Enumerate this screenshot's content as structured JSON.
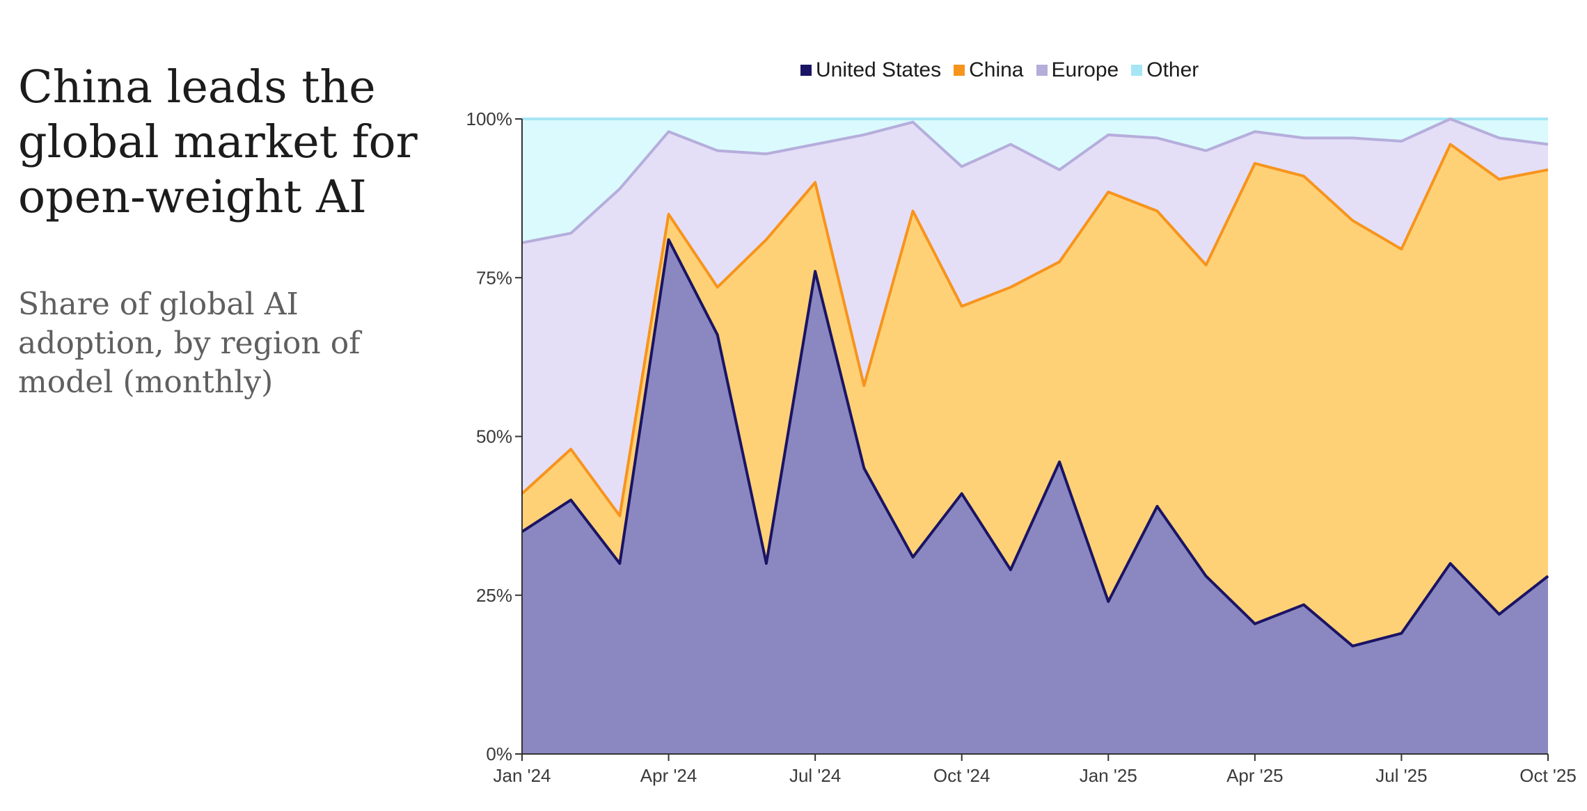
{
  "chart_data": {
    "type": "area",
    "stacked": true,
    "title": "China leads the global market for open-weight AI",
    "subtitle": "Share of global AI adoption, by region of model (monthly)",
    "x": [
      "Jan '24",
      "Feb '24",
      "Mar '24",
      "Apr '24",
      "May '24",
      "Jun '24",
      "Jul '24",
      "Aug '24",
      "Sep '24",
      "Oct '24",
      "Nov '24",
      "Dec '24",
      "Jan '25",
      "Feb '25",
      "Mar '25",
      "Apr '25",
      "May '25",
      "Jun '25",
      "Jul '25",
      "Aug '25",
      "Sep '25",
      "Oct '25"
    ],
    "x_tick_labels": [
      "Jan '24",
      "Apr '24",
      "Jul '24",
      "Oct '24",
      "Jan '25",
      "Apr '25",
      "Jul '25",
      "Oct '25"
    ],
    "y_tick_labels": [
      "0%",
      "25%",
      "50%",
      "75%",
      "100%"
    ],
    "ylim": [
      0,
      100
    ],
    "legend_position": "top",
    "series": [
      {
        "name": "United States",
        "color": "#1a1464",
        "fill": "#8b88c1",
        "values": [
          35,
          40,
          30,
          81,
          66,
          30,
          76,
          45,
          31,
          41,
          29,
          46,
          24,
          39,
          28,
          20.5,
          23.5,
          17,
          19,
          30,
          22,
          28
        ]
      },
      {
        "name": "China",
        "color": "#f7941d",
        "fill": "#ffd177",
        "values": [
          6,
          8,
          7.5,
          4,
          7.5,
          51,
          14,
          13,
          54.5,
          29.5,
          44.5,
          31.5,
          64.5,
          46.5,
          49,
          72.5,
          67.5,
          67,
          60.5,
          66,
          68.5,
          64
        ]
      },
      {
        "name": "Europe",
        "color": "#b5aedb",
        "fill": "#e4dff7",
        "values": [
          39.5,
          34,
          51.5,
          13,
          21.5,
          13.5,
          6,
          39.5,
          14,
          22,
          22.5,
          14.5,
          9,
          11.5,
          18,
          5,
          6,
          13,
          17,
          4,
          6.5,
          4
        ]
      },
      {
        "name": "Other",
        "color": "#a6e5f5",
        "fill": "#dbfafd",
        "values": [
          19.5,
          18,
          11,
          2,
          5,
          5.5,
          4,
          2.5,
          0.5,
          7.5,
          4,
          8,
          2.5,
          3,
          5,
          2,
          3,
          3,
          3.5,
          0,
          3,
          4
        ]
      }
    ]
  }
}
